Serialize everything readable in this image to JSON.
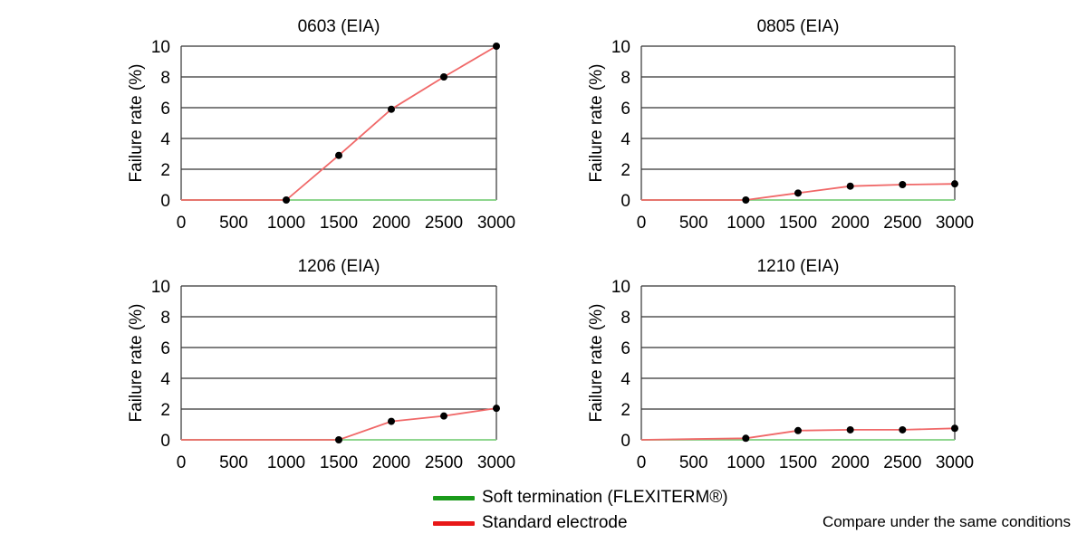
{
  "chart_data": [
    {
      "type": "line",
      "title": "0603 (EIA)",
      "xlabel": "",
      "ylabel": "Failure rate (%)",
      "xlim": [
        0,
        3000
      ],
      "ylim": [
        0,
        10
      ],
      "xticks": [
        "0",
        "500",
        "1000",
        "1500",
        "2000",
        "2500",
        "3000"
      ],
      "yticks": [
        "0",
        "2",
        "4",
        "6",
        "8",
        "10"
      ],
      "grid": "horizontal",
      "series": [
        {
          "name": "Soft termination (FLEXITERM®)",
          "color": "#7fd07f",
          "x": [
            0,
            1000,
            3000
          ],
          "values": [
            0,
            0,
            0
          ],
          "markers": false
        },
        {
          "name": "Standard electrode",
          "color": "#f06868",
          "x": [
            0,
            1000,
            1500,
            2000,
            2500,
            3000
          ],
          "values": [
            0,
            0,
            2.9,
            5.9,
            8.0,
            10.0
          ],
          "markers": [
            false,
            true,
            true,
            true,
            true,
            true
          ]
        }
      ]
    },
    {
      "type": "line",
      "title": "0805 (EIA)",
      "xlabel": "",
      "ylabel": "Failure rate (%)",
      "xlim": [
        0,
        3000
      ],
      "ylim": [
        0,
        10
      ],
      "xticks": [
        "0",
        "500",
        "1000",
        "1500",
        "2000",
        "2500",
        "3000"
      ],
      "yticks": [
        "0",
        "2",
        "4",
        "6",
        "8",
        "10"
      ],
      "grid": "horizontal",
      "series": [
        {
          "name": "Soft termination (FLEXITERM®)",
          "color": "#7fd07f",
          "x": [
            0,
            1000,
            3000
          ],
          "values": [
            0,
            0,
            0
          ],
          "markers": false
        },
        {
          "name": "Standard electrode",
          "color": "#f06868",
          "x": [
            0,
            1000,
            1500,
            2000,
            2500,
            3000
          ],
          "values": [
            0,
            0,
            0.45,
            0.9,
            1.0,
            1.05
          ],
          "markers": [
            false,
            true,
            true,
            true,
            true,
            true
          ]
        }
      ]
    },
    {
      "type": "line",
      "title": "1206 (EIA)",
      "xlabel": "",
      "ylabel": "Failure rate (%)",
      "xlim": [
        0,
        3000
      ],
      "ylim": [
        0,
        10
      ],
      "xticks": [
        "0",
        "500",
        "1000",
        "1500",
        "2000",
        "2500",
        "3000"
      ],
      "yticks": [
        "0",
        "2",
        "4",
        "6",
        "8",
        "10"
      ],
      "grid": "horizontal",
      "series": [
        {
          "name": "Soft termination (FLEXITERM®)",
          "color": "#7fd07f",
          "x": [
            0,
            1500,
            3000
          ],
          "values": [
            0,
            0,
            0
          ],
          "markers": false
        },
        {
          "name": "Standard electrode",
          "color": "#f06868",
          "x": [
            0,
            1500,
            2000,
            2500,
            3000
          ],
          "values": [
            0,
            0,
            1.2,
            1.55,
            2.05
          ],
          "markers": [
            false,
            true,
            true,
            true,
            true
          ]
        }
      ]
    },
    {
      "type": "line",
      "title": "1210 (EIA)",
      "xlabel": "",
      "ylabel": "Failure rate (%)",
      "xlim": [
        0,
        3000
      ],
      "ylim": [
        0,
        10
      ],
      "xticks": [
        "0",
        "500",
        "1000",
        "1500",
        "2000",
        "2500",
        "3000"
      ],
      "yticks": [
        "0",
        "2",
        "4",
        "6",
        "8",
        "10"
      ],
      "grid": "horizontal",
      "series": [
        {
          "name": "Soft termination (FLEXITERM®)",
          "color": "#7fd07f",
          "x": [
            0,
            1000,
            3000
          ],
          "values": [
            0,
            0,
            0
          ],
          "markers": false
        },
        {
          "name": "Standard electrode",
          "color": "#f06868",
          "x": [
            0,
            1000,
            1500,
            2000,
            2500,
            3000
          ],
          "values": [
            0,
            0.1,
            0.6,
            0.65,
            0.65,
            0.75
          ],
          "markers": [
            false,
            true,
            true,
            true,
            true,
            true
          ]
        }
      ]
    }
  ],
  "legend": {
    "items": [
      {
        "label": "Soft termination (FLEXITERM®)",
        "color": "#1a9a1a"
      },
      {
        "label": "Standard electrode",
        "color": "#e81818"
      }
    ]
  },
  "note": "Compare under the same conditions"
}
